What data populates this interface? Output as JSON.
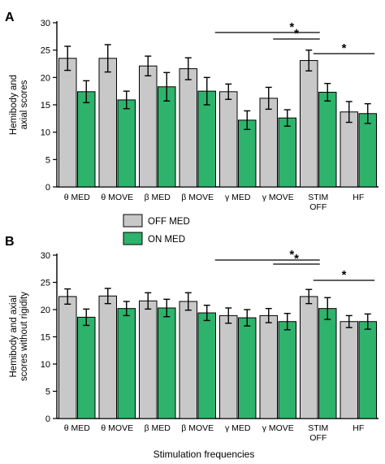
{
  "figure": {
    "xlabel": "Stimulation frequencies",
    "legend": [
      {
        "name": "OFF MED",
        "color": "#c8c8c8"
      },
      {
        "name": "ON MED",
        "color": "#2db36b"
      }
    ]
  },
  "chart_data": [
    {
      "type": "bar",
      "panel": "A",
      "ylabel": [
        "Hemibody and",
        "axial scores"
      ],
      "ylim": [
        0,
        30
      ],
      "yticks": [
        "0",
        "5",
        "10",
        "15",
        "20",
        "25",
        "30"
      ],
      "categories": [
        [
          "θ MED"
        ],
        [
          "θ MOVE"
        ],
        [
          "β MED"
        ],
        [
          "β MOVE"
        ],
        [
          "γ MED"
        ],
        [
          "γ MOVE"
        ],
        [
          "STIM",
          "OFF"
        ],
        [
          "HF"
        ]
      ],
      "series": [
        {
          "name": "OFF MED",
          "values": [
            23.5,
            23.5,
            22.1,
            21.6,
            17.4,
            16.2,
            23.1,
            13.7
          ],
          "errors": [
            2.2,
            2.5,
            1.8,
            2.0,
            1.4,
            2.0,
            1.9,
            1.9
          ]
        },
        {
          "name": "ON MED",
          "values": [
            17.4,
            15.9,
            18.3,
            17.5,
            12.2,
            12.6,
            17.3,
            13.4
          ],
          "errors": [
            2.0,
            1.6,
            2.6,
            2.5,
            1.7,
            1.5,
            1.6,
            1.8
          ]
        }
      ],
      "annotations": [
        {
          "text": "*",
          "from": 4,
          "to": 6
        },
        {
          "text": "*",
          "from": 5,
          "to": 6
        },
        {
          "text": "*",
          "from": 6,
          "to": 7
        }
      ]
    },
    {
      "type": "bar",
      "panel": "B",
      "ylabel": [
        "Hemibody and axial",
        "scores without rigidity"
      ],
      "ylim": [
        0,
        30
      ],
      "yticks": [
        "0",
        "5",
        "10",
        "15",
        "20",
        "25",
        "30"
      ],
      "categories": [
        [
          "θ MED"
        ],
        [
          "θ MOVE"
        ],
        [
          "β MED"
        ],
        [
          "β MOVE"
        ],
        [
          "γ MED"
        ],
        [
          "γ MOVE"
        ],
        [
          "STIM",
          "OFF"
        ],
        [
          "HF"
        ]
      ],
      "series": [
        {
          "name": "OFF MED",
          "values": [
            22.4,
            22.5,
            21.6,
            21.5,
            18.9,
            18.9,
            22.4,
            17.8
          ],
          "errors": [
            1.4,
            1.4,
            1.5,
            1.6,
            1.4,
            1.3,
            1.3,
            1.1
          ]
        },
        {
          "name": "ON MED",
          "values": [
            18.6,
            20.2,
            20.3,
            19.4,
            18.5,
            17.8,
            20.2,
            17.8
          ],
          "errors": [
            1.5,
            1.3,
            1.6,
            1.4,
            1.5,
            1.5,
            2.0,
            1.4
          ]
        }
      ],
      "annotations": [
        {
          "text": "*",
          "from": 4,
          "to": 6
        },
        {
          "text": "*",
          "from": 5,
          "to": 6
        },
        {
          "text": "*",
          "from": 6,
          "to": 7
        }
      ]
    }
  ]
}
